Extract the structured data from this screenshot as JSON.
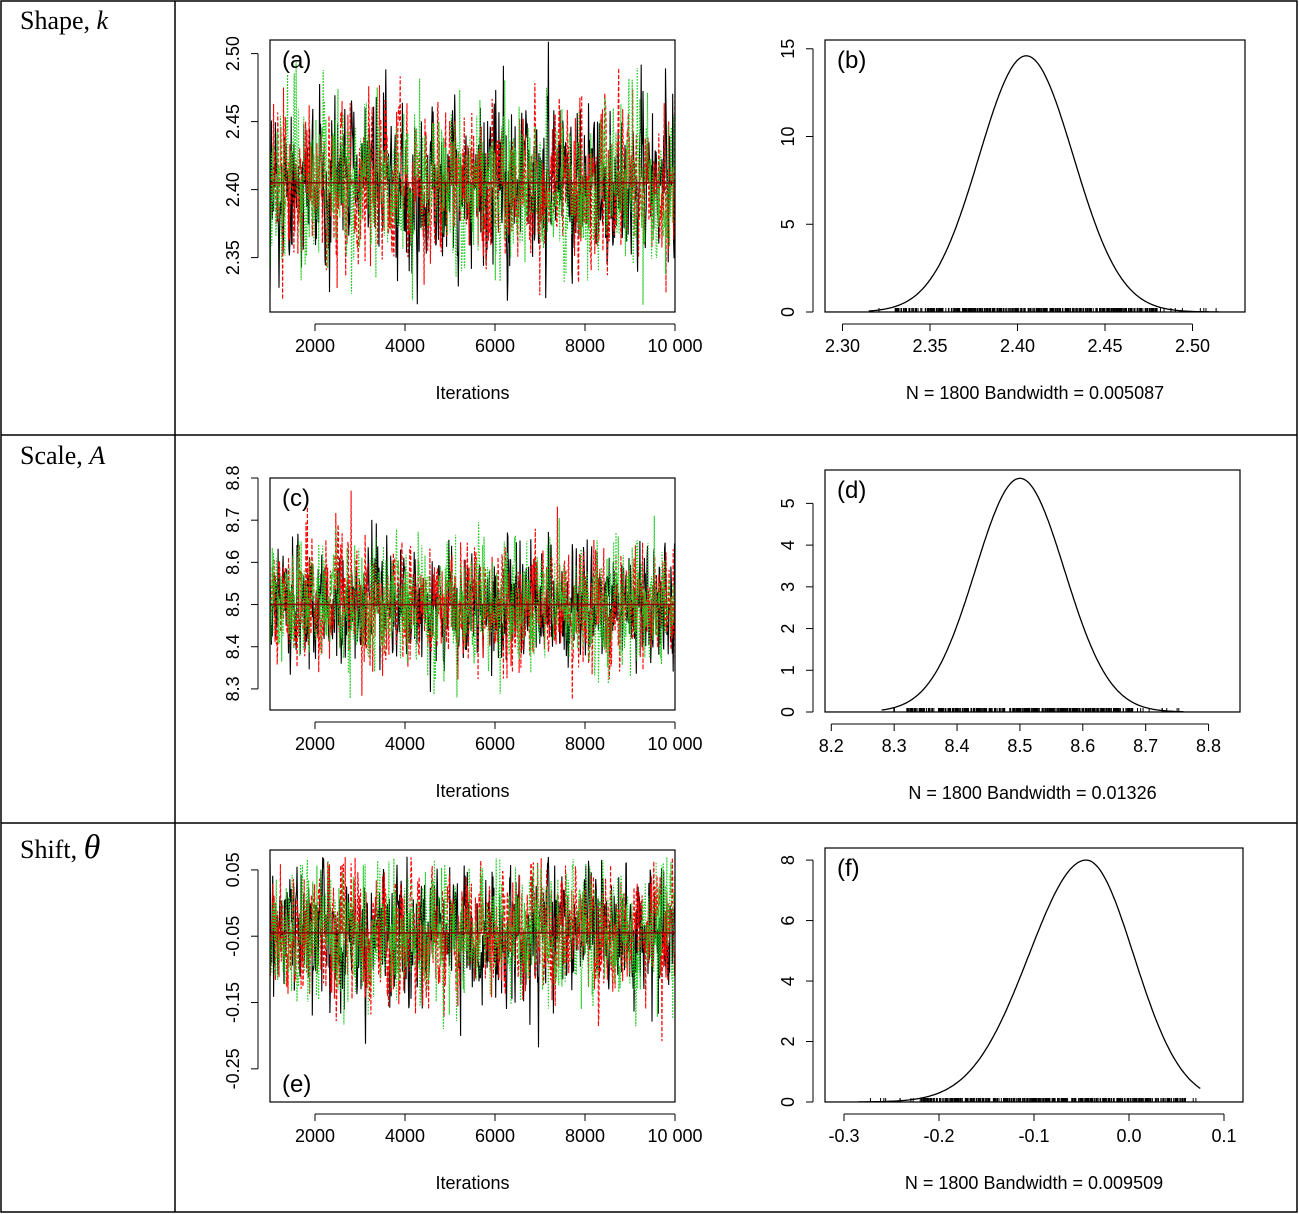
{
  "rows": [
    {
      "label_text": "Shape, ",
      "symbol": "k"
    },
    {
      "label_text": "Scale, ",
      "symbol": "A"
    },
    {
      "label_text": "Shift, ",
      "symbol": "θ"
    }
  ],
  "chart_data": [
    {
      "id": "a",
      "panel_label": "(a)",
      "type": "line",
      "xlabel": "Iterations",
      "ylabel": "",
      "xlim": [
        1000,
        10000
      ],
      "ylim": [
        2.31,
        2.51
      ],
      "xticks": [
        2000,
        4000,
        6000,
        8000,
        10000
      ],
      "xtick_labels": [
        "2000",
        "4000",
        "6000",
        "8000",
        "10 000"
      ],
      "yticks": [
        2.35,
        2.4,
        2.45,
        2.5
      ],
      "ytick_labels": [
        "2.35",
        "2.40",
        "2.45",
        "2.50"
      ],
      "mean": 2.405,
      "sd": 0.028,
      "min": 2.315,
      "max": 2.515,
      "series_colors": [
        "#000000",
        "#ff0000",
        "#22cc22"
      ],
      "running_mean_color": "#8b0000"
    },
    {
      "id": "b",
      "panel_label": "(b)",
      "type": "line",
      "xlabel": "N = 1800   Bandwidth = 0.005087",
      "ylabel": "",
      "xlim": [
        2.29,
        2.53
      ],
      "ylim": [
        0,
        15.5
      ],
      "xticks": [
        2.3,
        2.35,
        2.4,
        2.45,
        2.5
      ],
      "xtick_labels": [
        "2.30",
        "2.35",
        "2.40",
        "2.45",
        "2.50"
      ],
      "yticks": [
        0,
        5,
        10,
        15
      ],
      "ytick_labels": [
        "0",
        "5",
        "10",
        "15"
      ],
      "density": {
        "peak_x": 2.405,
        "peak_y": 14.6,
        "sd": 0.027,
        "from": 2.315,
        "to": 2.515
      },
      "rug": {
        "from": 2.315,
        "to": 2.515,
        "dense_from": 2.33,
        "dense_to": 2.48
      }
    },
    {
      "id": "c",
      "panel_label": "(c)",
      "type": "line",
      "xlabel": "Iterations",
      "ylabel": "",
      "xlim": [
        1000,
        10000
      ],
      "ylim": [
        8.25,
        8.8
      ],
      "xticks": [
        2000,
        4000,
        6000,
        8000,
        10000
      ],
      "xtick_labels": [
        "2000",
        "4000",
        "6000",
        "8000",
        "10 000"
      ],
      "yticks": [
        8.3,
        8.4,
        8.5,
        8.6,
        8.7,
        8.8
      ],
      "ytick_labels": [
        "8.3",
        "8.4",
        "8.5",
        "8.6",
        "8.7",
        "8.8"
      ],
      "mean": 8.5,
      "sd": 0.072,
      "min": 8.26,
      "max": 8.78,
      "series_colors": [
        "#000000",
        "#ff0000",
        "#22cc22"
      ],
      "running_mean_color": "#8b0000"
    },
    {
      "id": "d",
      "panel_label": "(d)",
      "type": "line",
      "xlabel": "N = 1800   Bandwidth = 0.01326",
      "ylabel": "",
      "xlim": [
        8.19,
        8.85
      ],
      "ylim": [
        0,
        5.8
      ],
      "xticks": [
        8.2,
        8.3,
        8.4,
        8.5,
        8.6,
        8.7,
        8.8
      ],
      "xtick_labels": [
        "8.2",
        "8.3",
        "8.4",
        "8.5",
        "8.6",
        "8.7",
        "8.8"
      ],
      "yticks": [
        0,
        1,
        2,
        3,
        4,
        5
      ],
      "ytick_labels": [
        "0",
        "1",
        "2",
        "3",
        "4",
        "5"
      ],
      "density": {
        "peak_x": 8.5,
        "peak_y": 5.6,
        "sd": 0.071,
        "from": 8.28,
        "to": 8.76
      },
      "rug": {
        "from": 8.28,
        "to": 8.76,
        "dense_from": 8.32,
        "dense_to": 8.68
      }
    },
    {
      "id": "e",
      "panel_label": "(e)",
      "type": "line",
      "xlabel": "Iterations",
      "ylabel": "",
      "xlim": [
        1000,
        10000
      ],
      "ylim": [
        -0.3,
        0.08
      ],
      "xticks": [
        2000,
        4000,
        6000,
        8000,
        10000
      ],
      "xtick_labels": [
        "2000",
        "4000",
        "6000",
        "8000",
        "10 000"
      ],
      "yticks": [
        -0.25,
        -0.15,
        -0.05,
        0.05
      ],
      "ytick_labels": [
        "-0.25",
        "-0.15",
        "-0.05",
        "0.05"
      ],
      "mean": -0.045,
      "sd": 0.05,
      "min": -0.28,
      "max": 0.07,
      "series_colors": [
        "#000000",
        "#ff0000",
        "#22cc22"
      ],
      "running_mean_color": "#8b0000"
    },
    {
      "id": "f",
      "panel_label": "(f)",
      "type": "line",
      "xlabel": "N = 1800   Bandwidth = 0.009509",
      "ylabel": "",
      "xlim": [
        -0.32,
        0.12
      ],
      "ylim": [
        0,
        8.4
      ],
      "xticks": [
        -0.3,
        -0.2,
        -0.1,
        0.0,
        0.1
      ],
      "xtick_labels": [
        "-0.3",
        "-0.2",
        "-0.1",
        "0.0",
        "0.1"
      ],
      "yticks": [
        0,
        2,
        4,
        6,
        8
      ],
      "ytick_labels": [
        "0",
        "2",
        "4",
        "6",
        "8"
      ],
      "density": {
        "peak_x": -0.045,
        "peak_y": 8.0,
        "sd": 0.05,
        "from": -0.285,
        "to": 0.075,
        "skew": -0.6
      },
      "rug": {
        "from": -0.285,
        "to": 0.075,
        "dense_from": -0.22,
        "dense_to": 0.06
      }
    }
  ]
}
